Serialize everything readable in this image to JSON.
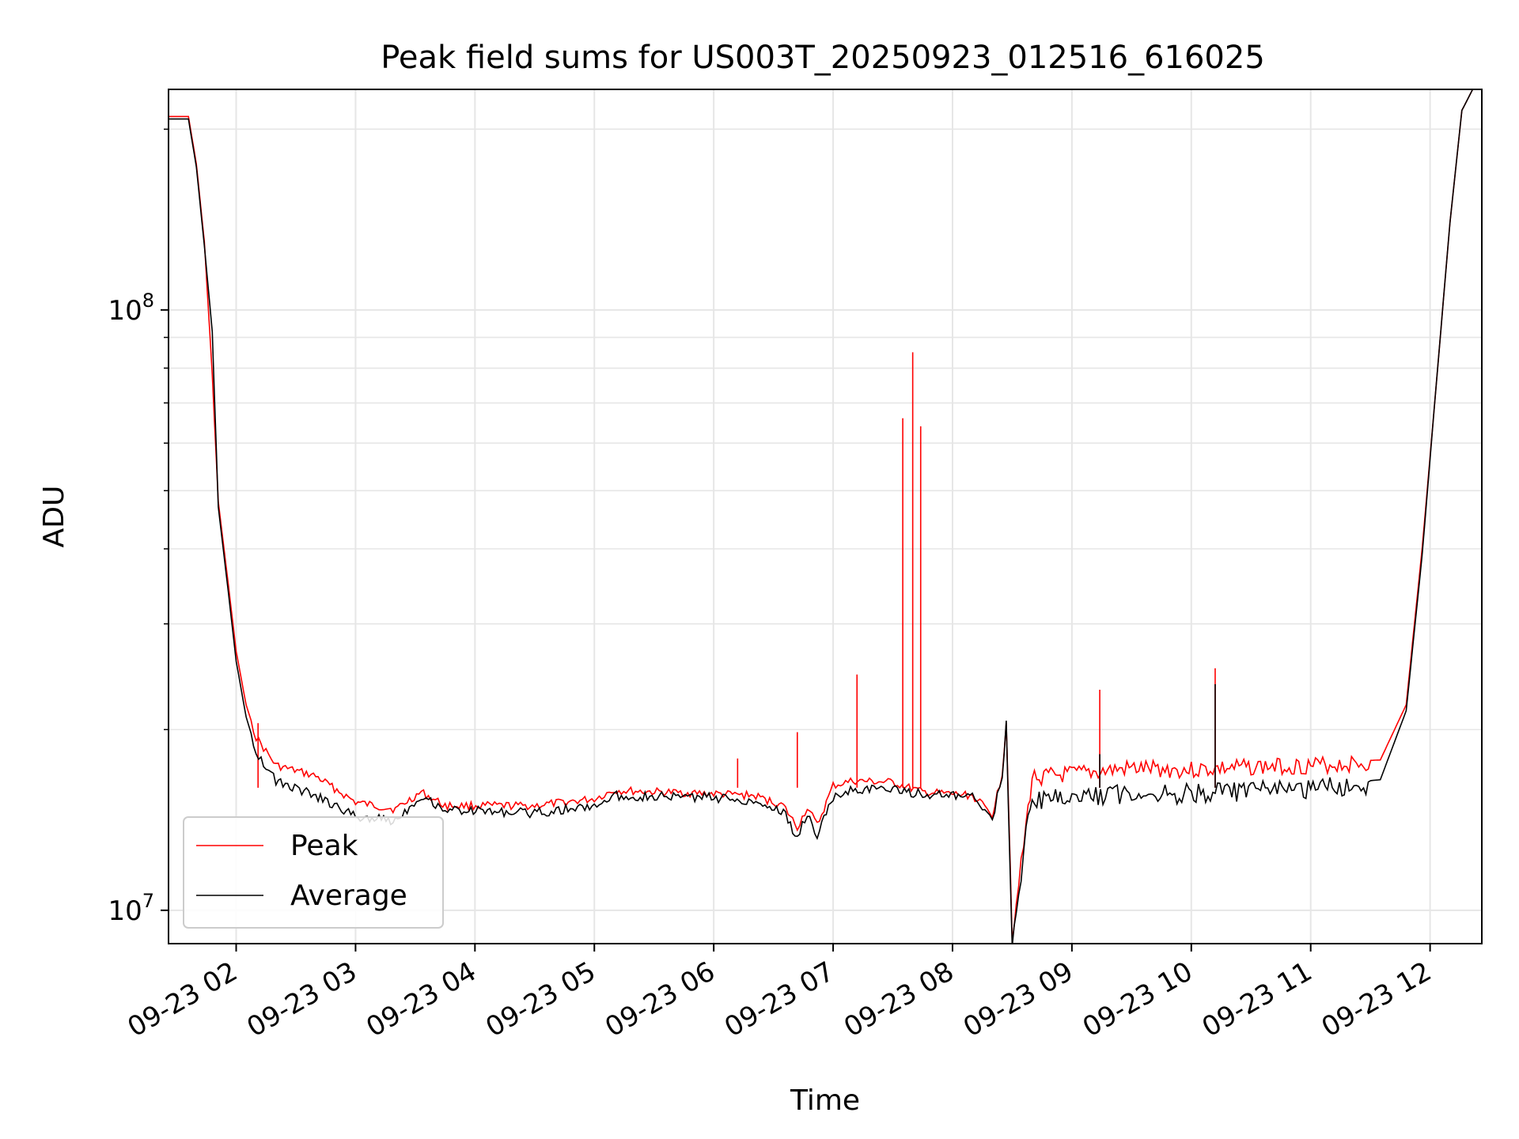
{
  "chart_data": {
    "type": "line",
    "title": "Peak field sums for US003T_20250923_012516_616025",
    "xlabel": "Time",
    "ylabel": "ADU",
    "yscale": "log",
    "grid": true,
    "legend_position": "lower-left",
    "xlim": [
      "2025-09-23T01:26",
      "2025-09-23T12:26"
    ],
    "ylim": [
      8800000,
      233000000
    ],
    "x_tick_labels": [
      "09-23 02",
      "09-23 03",
      "09-23 04",
      "09-23 05",
      "09-23 06",
      "09-23 07",
      "09-23 08",
      "09-23 09",
      "09-23 10",
      "09-23 11",
      "09-23 12"
    ],
    "y_ticks": [
      {
        "value": 10000000,
        "base": "10",
        "exp": "7"
      },
      {
        "value": 100000000,
        "base": "10",
        "exp": "8"
      }
    ],
    "series": [
      {
        "name": "Peak",
        "color": "#ff0000",
        "points": [
          [
            "2025-09-23T01:26",
            210000000
          ],
          [
            "2025-09-23T01:36",
            210000000
          ],
          [
            "2025-09-23T01:40",
            175000000
          ],
          [
            "2025-09-23T01:44",
            130000000
          ],
          [
            "2025-09-23T01:48",
            78000000
          ],
          [
            "2025-09-23T01:51",
            48000000
          ],
          [
            "2025-09-23T01:56",
            35000000
          ],
          [
            "2025-09-23T02:00",
            27000000
          ],
          [
            "2025-09-23T02:05",
            22000000
          ],
          [
            "2025-09-23T02:10",
            19500000
          ],
          [
            "2025-09-23T02:20",
            17500000
          ],
          [
            "2025-09-23T02:40",
            16800000
          ],
          [
            "2025-09-23T03:00",
            15200000
          ],
          [
            "2025-09-23T03:20",
            14800000
          ],
          [
            "2025-09-23T03:33",
            15800000
          ],
          [
            "2025-09-23T03:45",
            15000000
          ],
          [
            "2025-09-23T04:30",
            15000000
          ],
          [
            "2025-09-23T05:00",
            15400000
          ],
          [
            "2025-09-23T05:10",
            15900000
          ],
          [
            "2025-09-23T06:00",
            15700000
          ],
          [
            "2025-09-23T06:20",
            15600000
          ],
          [
            "2025-09-23T06:35",
            15000000
          ],
          [
            "2025-09-23T06:42",
            13800000
          ],
          [
            "2025-09-23T06:47",
            14900000
          ],
          [
            "2025-09-23T06:52",
            13900000
          ],
          [
            "2025-09-23T07:00",
            16200000
          ],
          [
            "2025-09-23T07:10",
            16500000
          ],
          [
            "2025-09-23T07:30",
            16400000
          ],
          [
            "2025-09-23T07:45",
            15800000
          ],
          [
            "2025-09-23T08:10",
            15600000
          ],
          [
            "2025-09-23T08:20",
            14500000
          ],
          [
            "2025-09-23T08:25",
            17000000
          ],
          [
            "2025-09-23T08:27",
            20800000
          ],
          [
            "2025-09-23T08:29",
            12000000
          ],
          [
            "2025-09-23T08:30",
            9000000
          ],
          [
            "2025-09-23T08:32",
            10200000
          ],
          [
            "2025-09-23T08:37",
            14000000
          ],
          [
            "2025-09-23T08:40",
            16800000
          ],
          [
            "2025-09-23T09:00",
            17000000
          ],
          [
            "2025-09-23T09:30",
            17400000
          ],
          [
            "2025-09-23T10:00",
            17300000
          ],
          [
            "2025-09-23T10:30",
            17500000
          ],
          [
            "2025-09-23T11:00",
            17600000
          ],
          [
            "2025-09-23T11:35",
            17800000
          ],
          [
            "2025-09-23T11:48",
            22000000
          ],
          [
            "2025-09-23T11:56",
            40000000
          ],
          [
            "2025-09-23T12:02",
            68000000
          ],
          [
            "2025-09-23T12:10",
            140000000
          ],
          [
            "2025-09-23T12:16",
            215000000
          ],
          [
            "2025-09-23T12:22",
            235000000
          ]
        ],
        "spikes": [
          [
            "2025-09-23T02:11",
            20500000
          ],
          [
            "2025-09-23T06:12",
            17900000
          ],
          [
            "2025-09-23T06:42",
            19800000
          ],
          [
            "2025-09-23T07:12",
            24700000
          ],
          [
            "2025-09-23T07:35",
            66000000
          ],
          [
            "2025-09-23T07:40",
            85000000
          ],
          [
            "2025-09-23T07:44",
            64000000
          ],
          [
            "2025-09-23T09:14",
            23300000
          ],
          [
            "2025-09-23T10:12",
            25300000
          ]
        ]
      },
      {
        "name": "Average",
        "color": "#000000",
        "points": [
          [
            "2025-09-23T01:26",
            208000000
          ],
          [
            "2025-09-23T01:36",
            208000000
          ],
          [
            "2025-09-23T01:40",
            173000000
          ],
          [
            "2025-09-23T01:44",
            128000000
          ],
          [
            "2025-09-23T01:48",
            92000000
          ],
          [
            "2025-09-23T01:51",
            47000000
          ],
          [
            "2025-09-23T01:56",
            34000000
          ],
          [
            "2025-09-23T02:00",
            26000000
          ],
          [
            "2025-09-23T02:05",
            21000000
          ],
          [
            "2025-09-23T02:10",
            18500000
          ],
          [
            "2025-09-23T02:20",
            16500000
          ],
          [
            "2025-09-23T02:40",
            15600000
          ],
          [
            "2025-09-23T03:00",
            14400000
          ],
          [
            "2025-09-23T03:20",
            14200000
          ],
          [
            "2025-09-23T03:33",
            15600000
          ],
          [
            "2025-09-23T03:45",
            14800000
          ],
          [
            "2025-09-23T04:30",
            14600000
          ],
          [
            "2025-09-23T05:00",
            15000000
          ],
          [
            "2025-09-23T05:10",
            15600000
          ],
          [
            "2025-09-23T06:00",
            15500000
          ],
          [
            "2025-09-23T06:20",
            15300000
          ],
          [
            "2025-09-23T06:35",
            14700000
          ],
          [
            "2025-09-23T06:42",
            13200000
          ],
          [
            "2025-09-23T06:47",
            14600000
          ],
          [
            "2025-09-23T06:52",
            13400000
          ],
          [
            "2025-09-23T07:00",
            15500000
          ],
          [
            "2025-09-23T07:10",
            16000000
          ],
          [
            "2025-09-23T07:30",
            16000000
          ],
          [
            "2025-09-23T07:45",
            15700000
          ],
          [
            "2025-09-23T08:10",
            15500000
          ],
          [
            "2025-09-23T08:20",
            14300000
          ],
          [
            "2025-09-23T08:25",
            16800000
          ],
          [
            "2025-09-23T08:27",
            20800000
          ],
          [
            "2025-09-23T08:29",
            11500000
          ],
          [
            "2025-09-23T08:30",
            8900000
          ],
          [
            "2025-09-23T08:32",
            9800000
          ],
          [
            "2025-09-23T08:37",
            13500000
          ],
          [
            "2025-09-23T08:40",
            15500000
          ],
          [
            "2025-09-23T09:00",
            15600000
          ],
          [
            "2025-09-23T09:30",
            15900000
          ],
          [
            "2025-09-23T10:00",
            15800000
          ],
          [
            "2025-09-23T10:30",
            16000000
          ],
          [
            "2025-09-23T11:00",
            16100000
          ],
          [
            "2025-09-23T11:35",
            16500000
          ],
          [
            "2025-09-23T11:48",
            21500000
          ],
          [
            "2025-09-23T11:56",
            39000000
          ],
          [
            "2025-09-23T12:02",
            68000000
          ],
          [
            "2025-09-23T12:10",
            140000000
          ],
          [
            "2025-09-23T12:16",
            215000000
          ],
          [
            "2025-09-23T12:22",
            235000000
          ]
        ],
        "spikes": [
          [
            "2025-09-23T09:14",
            18200000
          ],
          [
            "2025-09-23T10:12",
            23800000
          ]
        ]
      }
    ]
  }
}
